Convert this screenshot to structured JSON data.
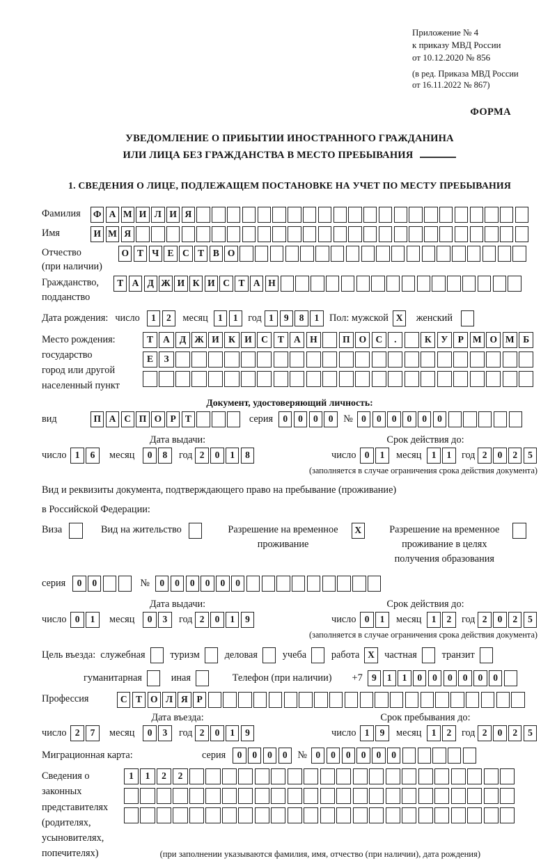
{
  "ref": {
    "line1": "Приложение № 4",
    "line2": "к приказу МВД России",
    "line3": "от 10.12.2020 № 856",
    "line4": "(в ред. Приказа МВД России",
    "line5": "от 16.11.2022 № 867)"
  },
  "forma": "ФОРМА",
  "title": {
    "line1": "УВЕДОМЛЕНИЕ О ПРИБЫТИИ ИНОСТРАННОГО ГРАЖДАНИНА",
    "line2": "ИЛИ ЛИЦА БЕЗ ГРАЖДАНСТВА В МЕСТО ПРЕБЫВАНИЯ"
  },
  "section1": "1. СВЕДЕНИЯ О ЛИЦЕ, ПОДЛЕЖАЩЕМ ПОСТАНОВКЕ НА УЧЕТ ПО МЕСТУ ПРЕБЫВАНИЯ",
  "surname": {
    "label": "Фамилия",
    "cells": {
      "value": "ФАМИЛИЯ",
      "len": 29
    }
  },
  "firstname": {
    "label": "Имя",
    "cells": {
      "value": "ИМЯ",
      "len": 29
    }
  },
  "patronymic": {
    "label1": "Отчество",
    "label2": "(при наличии)",
    "cells": {
      "value": "ОТЧЕСТВО",
      "len": 27
    }
  },
  "citizenship": {
    "label1": "Гражданство,",
    "label2": "подданство",
    "cells": {
      "value": "ТАДЖИКИСТАН",
      "len": 27
    }
  },
  "dob": {
    "label": "Дата рождения:",
    "num_label": "число",
    "num": {
      "value": "12",
      "len": 2
    },
    "month_label": "месяц",
    "month": {
      "value": "11",
      "len": 2
    },
    "year_label": "год",
    "year": {
      "value": "1981",
      "len": 4
    },
    "sex_label": "Пол: мужской",
    "male": {
      "value": "X",
      "len": 1
    },
    "female_label": "женский",
    "female": {
      "value": "",
      "len": 1
    }
  },
  "birthplace": {
    "label1": "Место рождения:",
    "label2": "государство",
    "label3": "город или другой",
    "label4": "населенный пункт",
    "row1": {
      "value": "ТАДЖИКИСТАН ПОС. КУРМОМБ",
      "len": 24
    },
    "row2": {
      "value": "ЕЗ",
      "len": 24
    },
    "row3": {
      "value": "",
      "len": 24
    }
  },
  "iddoc": {
    "heading": "Документ, удостоверяющий личность:",
    "type_label": "вид",
    "type": {
      "value": "ПАСПОРТ",
      "len": 10
    },
    "series_label": "серия",
    "series": {
      "value": "0000",
      "len": 4
    },
    "number_label": "№",
    "number": {
      "value": "000000",
      "len": 11
    }
  },
  "iddoc_dates": {
    "issue_header": "Дата выдачи:",
    "expiry_header": "Срок действия до:",
    "num_label": "число",
    "month_label": "месяц",
    "year_label": "год",
    "issue_day": {
      "value": "16",
      "len": 2
    },
    "issue_month": {
      "value": "08",
      "len": 2
    },
    "issue_year": {
      "value": "2018",
      "len": 4
    },
    "exp_day": {
      "value": "01",
      "len": 2
    },
    "exp_month": {
      "value": "11",
      "len": 2
    },
    "exp_year": {
      "value": "2025",
      "len": 4
    },
    "note": "(заполняется в случае ограничения срока действия документа)"
  },
  "staydoc": {
    "line1": "Вид и реквизиты документа, подтверждающего право на пребывание (проживание)",
    "line2": "в Российской Федерации:",
    "visa_label": "Виза",
    "visa": {
      "value": "",
      "len": 1
    },
    "residence_label": "Вид на жительство",
    "residence": {
      "value": "",
      "len": 1
    },
    "rvp_label": "Разрешение на временное проживание",
    "rvp": {
      "value": "X",
      "len": 1
    },
    "rvp_edu_label": "Разрешение на временное проживание в целях получения образования",
    "rvp_edu": {
      "value": "",
      "len": 1
    },
    "series_label": "серия",
    "series": {
      "value": "00",
      "len": 4
    },
    "number_label": "№",
    "number": {
      "value": "000000",
      "len": 15
    }
  },
  "staydoc_dates": {
    "issue_header": "Дата выдачи:",
    "expiry_header": "Срок действия до:",
    "num_label": "число",
    "month_label": "месяц",
    "year_label": "год",
    "issue_day": {
      "value": "01",
      "len": 2
    },
    "issue_month": {
      "value": "03",
      "len": 2
    },
    "issue_year": {
      "value": "2019",
      "len": 4
    },
    "exp_day": {
      "value": "01",
      "len": 2
    },
    "exp_month": {
      "value": "12",
      "len": 2
    },
    "exp_year": {
      "value": "2025",
      "len": 4
    },
    "note": "(заполняется в случае ограничения срока действия документа)"
  },
  "purpose": {
    "prefix": "Цель въезда:",
    "items": [
      {
        "label": "служебная",
        "box": {
          "value": "",
          "len": 1
        }
      },
      {
        "label": "туризм",
        "box": {
          "value": "",
          "len": 1
        }
      },
      {
        "label": "деловая",
        "box": {
          "value": "",
          "len": 1
        }
      },
      {
        "label": "учеба",
        "box": {
          "value": "",
          "len": 1
        }
      },
      {
        "label": "работа",
        "box": {
          "value": "X",
          "len": 1
        }
      },
      {
        "label": "частная",
        "box": {
          "value": "",
          "len": 1
        }
      },
      {
        "label": "транзит",
        "box": {
          "value": "",
          "len": 1
        }
      }
    ],
    "item8_label": "гуманитарная",
    "item8": {
      "value": "",
      "len": 1
    },
    "item9_label": "иная",
    "item9": {
      "value": "",
      "len": 1
    },
    "phone_label": "Телефон (при наличии)",
    "phone_prefix": "+7",
    "phone": {
      "value": "911000000",
      "len": 10
    }
  },
  "profession": {
    "label": "Профессия",
    "cells": {
      "value": "СТОЛЯР",
      "len": 27
    }
  },
  "entry_dates": {
    "issue_header": "Дата въезда:",
    "expiry_header": "Срок пребывания до:",
    "num_label": "число",
    "month_label": "месяц",
    "year_label": "год",
    "issue_day": {
      "value": "27",
      "len": 2
    },
    "issue_month": {
      "value": "03",
      "len": 2
    },
    "issue_year": {
      "value": "2019",
      "len": 4
    },
    "exp_day": {
      "value": "19",
      "len": 2
    },
    "exp_month": {
      "value": "12",
      "len": 2
    },
    "exp_year": {
      "value": "2025",
      "len": 4
    }
  },
  "migration": {
    "label": "Миграционная карта:",
    "series_label": "серия",
    "series": {
      "value": "0000",
      "len": 4
    },
    "number_label": "№",
    "number": {
      "value": "000000",
      "len": 11
    }
  },
  "representatives": {
    "label1": "Сведения о",
    "label2": "законных",
    "label3": "представителях",
    "label4": "(родителях,",
    "label5": "усыновителях,",
    "label6": "попечителях)",
    "row1": {
      "value": "1122",
      "len": 24
    },
    "row2": {
      "value": "",
      "len": 24
    },
    "row3": {
      "value": "",
      "len": 24
    },
    "note": "(при заполнении указываются фамилия, имя, отчество (при наличии), дата рождения)"
  }
}
